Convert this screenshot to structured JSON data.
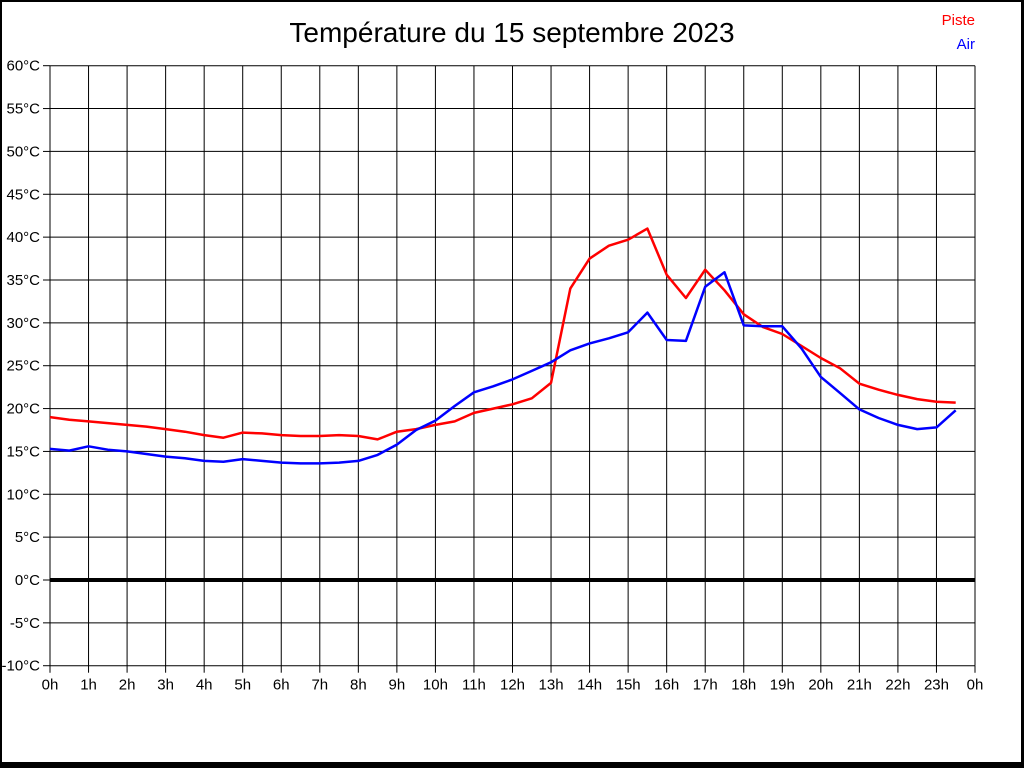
{
  "title": "Température du 15 septembre 2023",
  "legend": {
    "items": [
      {
        "label": "Piste",
        "color": "#ff0000"
      },
      {
        "label": "Air",
        "color": "#0000ff"
      }
    ]
  },
  "chart_data": {
    "type": "line",
    "title": "Température du 15 septembre 2023",
    "xlabel": "",
    "ylabel": "",
    "xlim": [
      0,
      24
    ],
    "ylim": [
      -10,
      60
    ],
    "y_tick_step": 5,
    "grid": true,
    "zero_line_value": 0,
    "legend_position": "top-right",
    "x_tick_labels": [
      "0h",
      "1h",
      "2h",
      "3h",
      "4h",
      "5h",
      "6h",
      "7h",
      "8h",
      "9h",
      "10h",
      "11h",
      "12h",
      "13h",
      "14h",
      "15h",
      "16h",
      "17h",
      "18h",
      "19h",
      "20h",
      "21h",
      "22h",
      "23h",
      "0h"
    ],
    "y_tick_labels": [
      "60°C",
      "55°C",
      "50°C",
      "45°C",
      "40°C",
      "35°C",
      "30°C",
      "25°C",
      "20°C",
      "15°C",
      "10°C",
      "5°C",
      "0°C",
      "-5°C",
      "-10°C"
    ],
    "x_hours": [
      0,
      0.5,
      1,
      1.5,
      2,
      2.5,
      3,
      3.5,
      4,
      4.5,
      5,
      5.5,
      6,
      6.5,
      7,
      7.5,
      8,
      8.5,
      9,
      9.5,
      10,
      10.5,
      11,
      11.5,
      12,
      12.5,
      13,
      13.5,
      14,
      14.5,
      15,
      15.5,
      16,
      16.5,
      17,
      17.5,
      18,
      18.5,
      19,
      19.5,
      20,
      20.5,
      21,
      21.5,
      22,
      22.5,
      23,
      23.5
    ],
    "series": [
      {
        "name": "Piste",
        "color": "#ff0000",
        "values": [
          19,
          18.7,
          18.5,
          18.3,
          18.1,
          17.9,
          17.6,
          17.3,
          16.9,
          16.6,
          17.2,
          17.1,
          16.9,
          16.8,
          16.8,
          16.9,
          16.8,
          16.4,
          17.3,
          17.6,
          18.1,
          18.5,
          19.5,
          20,
          20.5,
          21.2,
          23,
          34,
          37.5,
          39,
          39.7,
          41,
          35.6,
          32.9,
          36.2,
          33.8,
          31,
          29.5,
          28.7,
          27.3,
          25.9,
          24.7,
          22.9,
          22.2,
          21.6,
          21.1,
          20.8,
          20.7
        ]
      },
      {
        "name": "Air",
        "color": "#0000ff",
        "values": [
          15.3,
          15.1,
          15.6,
          15.2,
          15,
          14.7,
          14.4,
          14.2,
          13.9,
          13.8,
          14.1,
          13.9,
          13.7,
          13.6,
          13.6,
          13.7,
          13.9,
          14.6,
          15.8,
          17.5,
          18.6,
          20.3,
          21.9,
          22.6,
          23.4,
          24.4,
          25.4,
          26.8,
          27.6,
          28.2,
          28.9,
          31.2,
          28,
          27.9,
          34.2,
          35.9,
          29.7,
          29.6,
          29.6,
          27,
          23.7,
          21.8,
          19.9,
          18.9,
          18.1,
          17.6,
          17.8,
          19.8
        ]
      }
    ]
  }
}
